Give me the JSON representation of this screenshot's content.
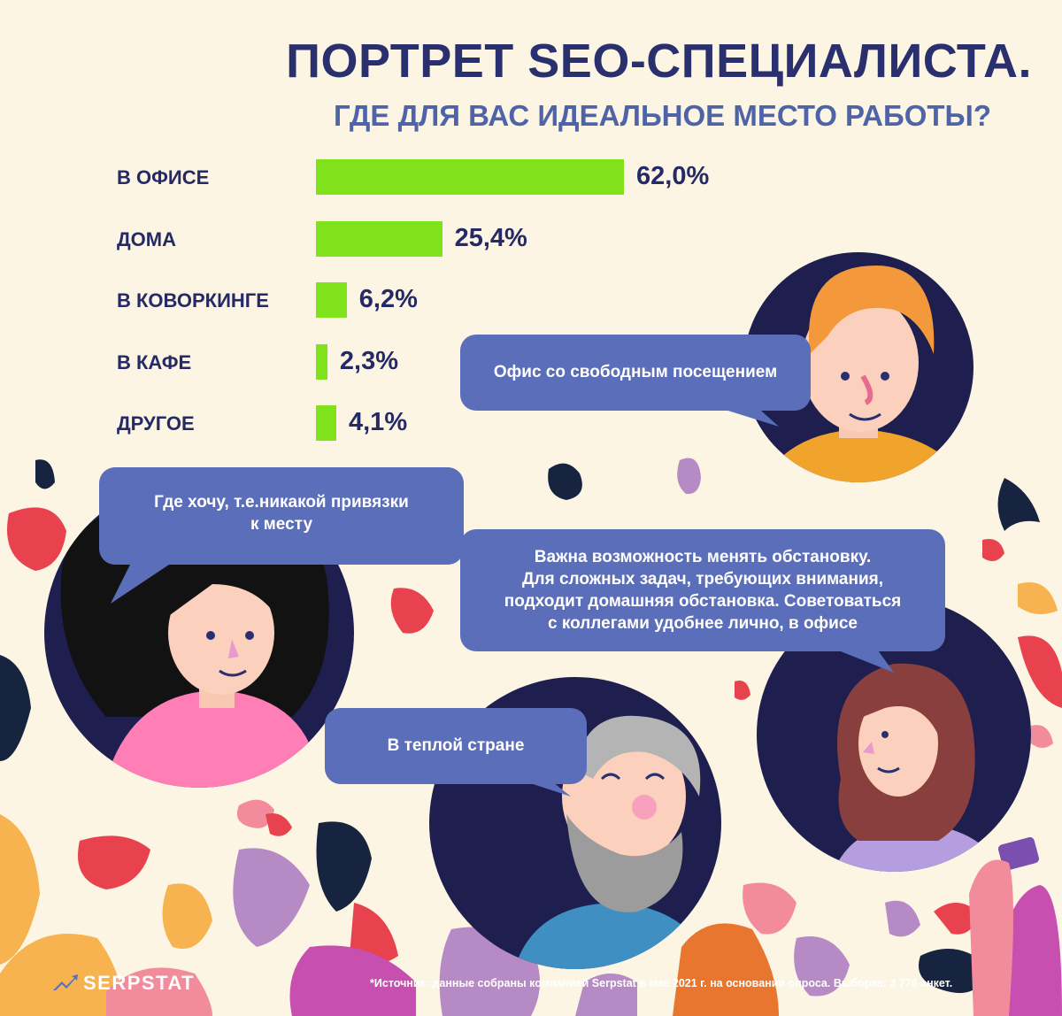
{
  "header": {
    "title": "ПОРТРЕТ SEO-СПЕЦИАЛИСТА.",
    "subtitle": "ГДЕ ДЛЯ ВАС ИДЕАЛЬНОЕ МЕСТО РАБОТЫ?"
  },
  "chart_data": {
    "type": "bar",
    "orientation": "horizontal",
    "title": "ПОРТРЕТ SEO-СПЕЦИАЛИСТА.",
    "subtitle": "ГДЕ ДЛЯ ВАС ИДЕАЛЬНОЕ МЕСТО РАБОТЫ?",
    "categories": [
      "В ОФИСЕ",
      "ДОМА",
      "В КОВОРКИНГЕ",
      "В КАФЕ",
      "ДРУГОЕ"
    ],
    "values": [
      62.0,
      25.4,
      6.2,
      2.3,
      4.1
    ],
    "value_labels": [
      "62,0%",
      "25,4%",
      "6,2%",
      "2,3%",
      "4,1%"
    ],
    "unit": "%",
    "xlim": [
      0,
      62
    ],
    "bar_color": "#7fe21b",
    "grid": false,
    "legend": "none"
  },
  "quotes": [
    "Офис со свободным посещением",
    "Где хочу, т.е.никакой привязки\nк месту",
    "Важна возможность менять обстановку.\nДля сложных задач, требующих внимания,\nподходит домашняя обстановка. Советоваться\nс коллегами удобнее лично, в офисе",
    "В теплой стране"
  ],
  "footer": {
    "brand": "SERPSTAT",
    "source": "*Источник: данные собраны компанией Serpstat в мае 2021 г. на основании опроса. Выборка: 3 776 анкет."
  },
  "colors": {
    "background": "#fcf5e3",
    "title": "#2a2f6d",
    "subtitle": "#4f63a8",
    "bubble": "#5b6eb9",
    "avatar_circle": "#1e1e4f",
    "bar": "#7fe21b"
  },
  "icons": {
    "logo": "serpstat-arrow-logo-icon"
  }
}
